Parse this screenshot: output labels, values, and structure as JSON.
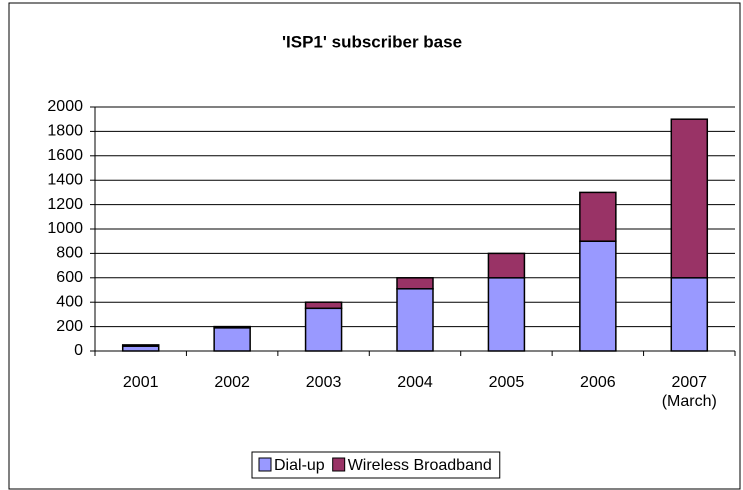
{
  "chart_data": {
    "type": "stacked_bar",
    "title": "'ISP1' subscriber base",
    "categories": [
      "2001",
      "2002",
      "2003",
      "2004",
      "2005",
      "2006",
      "2007 (March)"
    ],
    "series": [
      {
        "name": "Dial-up",
        "color": "#9999ff",
        "values": [
          40,
          190,
          350,
          510,
          600,
          900,
          600
        ]
      },
      {
        "name": "Wireless Broadband",
        "color": "#993366",
        "values": [
          10,
          10,
          50,
          90,
          200,
          400,
          1300
        ]
      }
    ],
    "ylim": [
      0,
      2000
    ],
    "yticks": [
      0,
      200,
      400,
      600,
      800,
      1000,
      1200,
      1400,
      1600,
      1800,
      2000
    ],
    "grid": true,
    "legend": "bottom"
  }
}
